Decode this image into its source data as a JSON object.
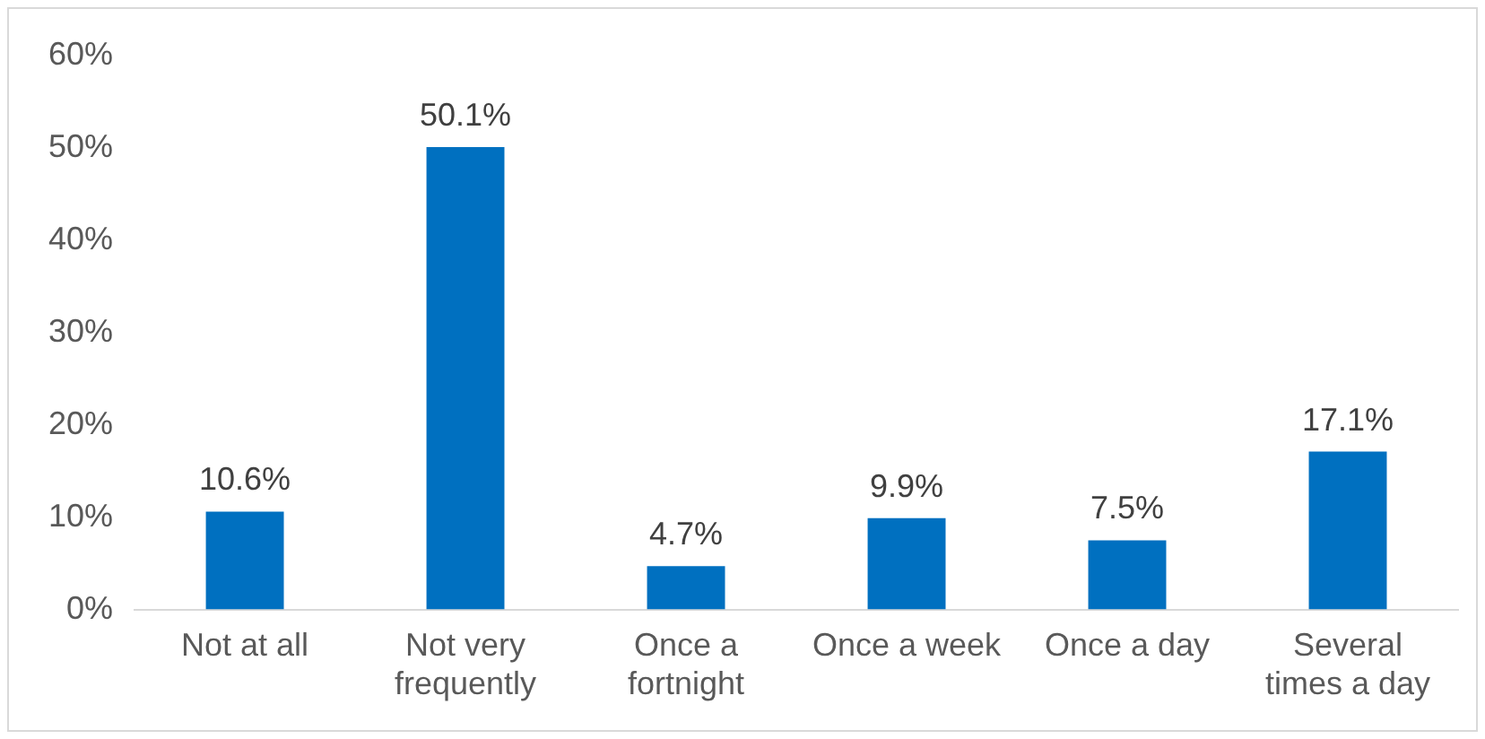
{
  "chart_data": {
    "type": "bar",
    "categories": [
      "Not at all",
      "Not very frequently",
      "Once a fortnight",
      "Once a week",
      "Once a day",
      "Several times a day"
    ],
    "values": [
      10.6,
      50.1,
      4.7,
      9.9,
      7.5,
      17.1
    ],
    "value_labels": [
      "10.6%",
      "50.1%",
      "4.7%",
      "9.9%",
      "7.5%",
      "17.1%"
    ],
    "color": "#0070c0",
    "ylim": [
      0,
      60
    ],
    "yticks": [
      {
        "value": 0,
        "label": "0%"
      },
      {
        "value": 10,
        "label": "10%"
      },
      {
        "value": 20,
        "label": "20%"
      },
      {
        "value": 30,
        "label": "30%"
      },
      {
        "value": 40,
        "label": "40%"
      },
      {
        "value": 50,
        "label": "50%"
      },
      {
        "value": 60,
        "label": "60%"
      }
    ],
    "grid": false,
    "legend": false
  }
}
